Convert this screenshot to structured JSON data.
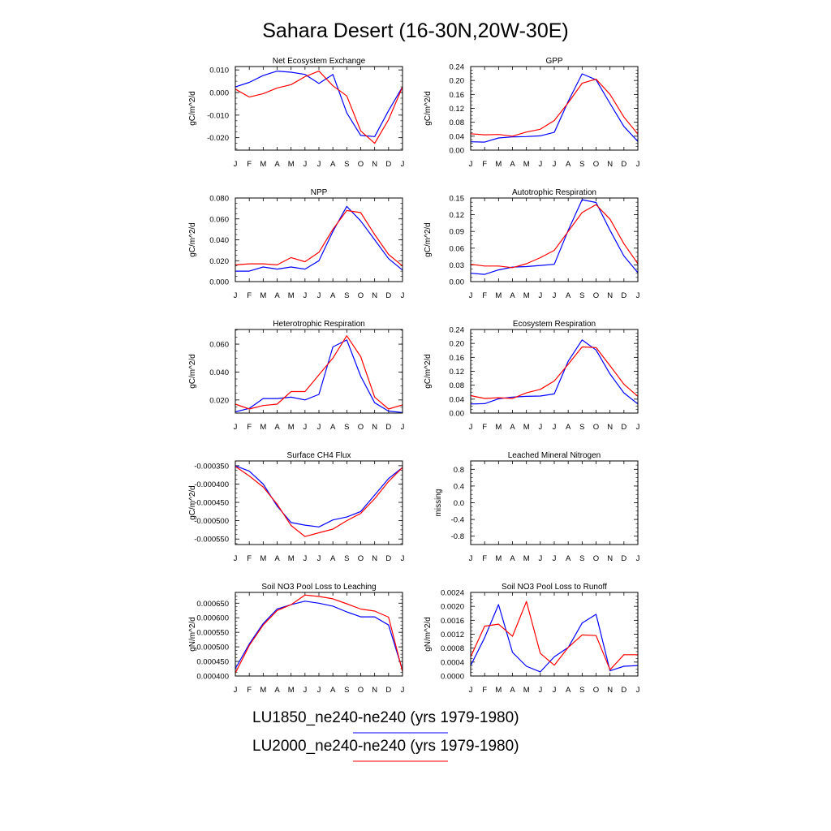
{
  "title": "Sahara Desert (16-30N,20W-30E)",
  "legend": [
    {
      "label": "LU1850_ne240-ne240 (yrs 1979-1980)",
      "color": "#0000ff"
    },
    {
      "label": "LU2000_ne240-ne240 (yrs 1979-1980)",
      "color": "#ff0000"
    }
  ],
  "chart_data": [
    {
      "type": "line",
      "title": "Net Ecosystem Exchange",
      "ylabel": "gC/m^2/d",
      "x": [
        "J",
        "F",
        "M",
        "A",
        "M",
        "J",
        "J",
        "A",
        "S",
        "O",
        "N",
        "D",
        "J"
      ],
      "ylim": [
        -0.0255,
        0.0115
      ],
      "yticks": [
        {
          "v": 0.01,
          "label": "0.010"
        },
        {
          "v": 0.0,
          "label": "0.000"
        },
        {
          "v": -0.01,
          "label": "-0.010"
        },
        {
          "v": -0.02,
          "label": "-0.020"
        }
      ],
      "series": [
        {
          "color": "#0000ff",
          "values": [
            0.0025,
            0.0045,
            0.0075,
            0.0095,
            0.009,
            0.008,
            0.004,
            0.008,
            -0.009,
            -0.019,
            -0.0195,
            -0.008,
            0.0025
          ]
        },
        {
          "color": "#ff0000",
          "values": [
            0.0015,
            -0.002,
            -0.0005,
            0.002,
            0.0035,
            0.007,
            0.0095,
            0.003,
            -0.0015,
            -0.017,
            -0.0225,
            -0.012,
            0.0025
          ]
        }
      ]
    },
    {
      "type": "line",
      "title": "GPP",
      "ylabel": "gC/m^2/d",
      "x": [
        "J",
        "F",
        "M",
        "A",
        "M",
        "J",
        "J",
        "A",
        "S",
        "O",
        "N",
        "D",
        "J"
      ],
      "ylim": [
        0,
        0.24
      ],
      "yticks": [
        {
          "v": 0.24,
          "label": "0.24"
        },
        {
          "v": 0.2,
          "label": "0.20"
        },
        {
          "v": 0.16,
          "label": "0.16"
        },
        {
          "v": 0.12,
          "label": "0.12"
        },
        {
          "v": 0.08,
          "label": "0.08"
        },
        {
          "v": 0.04,
          "label": "0.04"
        },
        {
          "v": 0.0,
          "label": "0.00"
        }
      ],
      "series": [
        {
          "color": "#0000ff",
          "values": [
            0.024,
            0.023,
            0.035,
            0.038,
            0.039,
            0.041,
            0.051,
            0.14,
            0.219,
            0.202,
            0.134,
            0.068,
            0.025
          ]
        },
        {
          "color": "#ff0000",
          "values": [
            0.047,
            0.044,
            0.045,
            0.04,
            0.052,
            0.06,
            0.085,
            0.136,
            0.192,
            0.204,
            0.16,
            0.095,
            0.046
          ]
        }
      ]
    },
    {
      "type": "line",
      "title": "NPP",
      "ylabel": "gC/m^2/d",
      "x": [
        "J",
        "F",
        "M",
        "A",
        "M",
        "J",
        "J",
        "A",
        "S",
        "O",
        "N",
        "D",
        "J"
      ],
      "ylim": [
        0,
        0.08
      ],
      "yticks": [
        {
          "v": 0.08,
          "label": "0.080"
        },
        {
          "v": 0.06,
          "label": "0.060"
        },
        {
          "v": 0.04,
          "label": "0.040"
        },
        {
          "v": 0.02,
          "label": "0.020"
        },
        {
          "v": 0.0,
          "label": "0.000"
        }
      ],
      "series": [
        {
          "color": "#0000ff",
          "values": [
            0.01,
            0.01,
            0.014,
            0.012,
            0.014,
            0.012,
            0.02,
            0.048,
            0.072,
            0.058,
            0.04,
            0.022,
            0.011
          ]
        },
        {
          "color": "#ff0000",
          "values": [
            0.016,
            0.017,
            0.017,
            0.016,
            0.023,
            0.019,
            0.028,
            0.05,
            0.068,
            0.066,
            0.045,
            0.026,
            0.015
          ]
        }
      ]
    },
    {
      "type": "line",
      "title": "Autotrophic Respiration",
      "ylabel": "gC/m^2/d",
      "x": [
        "J",
        "F",
        "M",
        "A",
        "M",
        "J",
        "J",
        "A",
        "S",
        "O",
        "N",
        "D",
        "J"
      ],
      "ylim": [
        0,
        0.15
      ],
      "yticks": [
        {
          "v": 0.15,
          "label": "0.15"
        },
        {
          "v": 0.12,
          "label": "0.12"
        },
        {
          "v": 0.09,
          "label": "0.09"
        },
        {
          "v": 0.06,
          "label": "0.06"
        },
        {
          "v": 0.03,
          "label": "0.03"
        },
        {
          "v": 0.0,
          "label": "0.00"
        }
      ],
      "series": [
        {
          "color": "#0000ff",
          "values": [
            0.015,
            0.013,
            0.021,
            0.026,
            0.027,
            0.029,
            0.031,
            0.092,
            0.147,
            0.142,
            0.092,
            0.046,
            0.016
          ]
        },
        {
          "color": "#ff0000",
          "values": [
            0.031,
            0.028,
            0.028,
            0.025,
            0.032,
            0.043,
            0.056,
            0.09,
            0.124,
            0.138,
            0.112,
            0.068,
            0.032
          ]
        }
      ]
    },
    {
      "type": "line",
      "title": "Heterotrophic Respiration",
      "ylabel": "gC/m^2/d",
      "x": [
        "J",
        "F",
        "M",
        "A",
        "M",
        "J",
        "J",
        "A",
        "S",
        "O",
        "N",
        "D",
        "J"
      ],
      "ylim": [
        0.0106,
        0.0705
      ],
      "yticks": [
        {
          "v": 0.06,
          "label": "0.060"
        },
        {
          "v": 0.04,
          "label": "0.040"
        },
        {
          "v": 0.02,
          "label": "0.020"
        }
      ],
      "series": [
        {
          "color": "#0000ff",
          "values": [
            0.0115,
            0.014,
            0.021,
            0.021,
            0.022,
            0.02,
            0.024,
            0.058,
            0.063,
            0.037,
            0.018,
            0.012,
            0.011
          ]
        },
        {
          "color": "#ff0000",
          "values": [
            0.017,
            0.0135,
            0.016,
            0.017,
            0.026,
            0.026,
            0.038,
            0.05,
            0.066,
            0.051,
            0.022,
            0.0135,
            0.0165
          ]
        }
      ]
    },
    {
      "type": "line",
      "title": "Ecosystem Respiration",
      "ylabel": "gC/m^2/d",
      "x": [
        "J",
        "F",
        "M",
        "A",
        "M",
        "J",
        "J",
        "A",
        "S",
        "O",
        "N",
        "D",
        "J"
      ],
      "ylim": [
        0,
        0.24
      ],
      "yticks": [
        {
          "v": 0.24,
          "label": "0.24"
        },
        {
          "v": 0.2,
          "label": "0.20"
        },
        {
          "v": 0.16,
          "label": "0.16"
        },
        {
          "v": 0.12,
          "label": "0.12"
        },
        {
          "v": 0.08,
          "label": "0.08"
        },
        {
          "v": 0.04,
          "label": "0.04"
        },
        {
          "v": 0.0,
          "label": "0.00"
        }
      ],
      "series": [
        {
          "color": "#0000ff",
          "values": [
            0.026,
            0.027,
            0.041,
            0.046,
            0.048,
            0.049,
            0.055,
            0.149,
            0.21,
            0.181,
            0.112,
            0.058,
            0.026
          ]
        },
        {
          "color": "#ff0000",
          "values": [
            0.05,
            0.042,
            0.044,
            0.042,
            0.058,
            0.068,
            0.092,
            0.14,
            0.19,
            0.188,
            0.136,
            0.083,
            0.048
          ]
        }
      ]
    },
    {
      "type": "line",
      "title": "Surface CH4 Flux",
      "ylabel": "gC/m^2/d",
      "x": [
        "J",
        "F",
        "M",
        "A",
        "M",
        "J",
        "J",
        "A",
        "S",
        "O",
        "N",
        "D",
        "J"
      ],
      "ylim": [
        -0.000565,
        -0.000337
      ],
      "yticks": [
        {
          "v": -0.00035,
          "label": "-0.000350"
        },
        {
          "v": -0.0004,
          "label": "-0.000400"
        },
        {
          "v": -0.00045,
          "label": "-0.000450"
        },
        {
          "v": -0.0005,
          "label": "-0.000500"
        },
        {
          "v": -0.00055,
          "label": "-0.000550"
        }
      ],
      "series": [
        {
          "color": "#0000ff",
          "values": [
            -0.00035,
            -0.000365,
            -0.0004,
            -0.00046,
            -0.000505,
            -0.000512,
            -0.000517,
            -0.000498,
            -0.00049,
            -0.000475,
            -0.00043,
            -0.000385,
            -0.000355
          ]
        },
        {
          "color": "#ff0000",
          "values": [
            -0.000352,
            -0.000378,
            -0.000408,
            -0.000455,
            -0.000513,
            -0.000543,
            -0.000533,
            -0.000523,
            -0.0005,
            -0.00048,
            -0.00044,
            -0.000393,
            -0.000355
          ]
        }
      ]
    },
    {
      "type": "line",
      "title": "Leached Mineral Nitrogen",
      "ylabel": "missing",
      "x": [
        "J",
        "F",
        "M",
        "A",
        "M",
        "J",
        "J",
        "A",
        "S",
        "O",
        "N",
        "D",
        "J"
      ],
      "ylim": [
        -1.0,
        1.0
      ],
      "yticks": [
        {
          "v": 0.8,
          "label": "0.8"
        },
        {
          "v": 0.4,
          "label": "0.4"
        },
        {
          "v": 0.0,
          "label": "0.0"
        },
        {
          "v": -0.4,
          "label": "-0.4"
        },
        {
          "v": -0.8,
          "label": "-0.8"
        }
      ],
      "series": []
    },
    {
      "type": "line",
      "title": "Soil NO3 Pool Loss to Leaching",
      "ylabel": "gN/m^2/d",
      "x": [
        "J",
        "F",
        "M",
        "A",
        "M",
        "J",
        "J",
        "A",
        "S",
        "O",
        "N",
        "D",
        "J"
      ],
      "ylim": [
        0.0004,
        0.000687
      ],
      "yticks": [
        {
          "v": 0.00065,
          "label": "0.000650"
        },
        {
          "v": 0.0006,
          "label": "0.000600"
        },
        {
          "v": 0.00055,
          "label": "0.000550"
        },
        {
          "v": 0.0005,
          "label": "0.000500"
        },
        {
          "v": 0.00045,
          "label": "0.000450"
        },
        {
          "v": 0.0004,
          "label": "0.000400"
        }
      ],
      "series": [
        {
          "color": "#0000ff",
          "values": [
            0.000425,
            0.00051,
            0.00058,
            0.00063,
            0.000645,
            0.000657,
            0.00065,
            0.00064,
            0.00062,
            0.000603,
            0.000603,
            0.000575,
            0.00042
          ]
        },
        {
          "color": "#ff0000",
          "values": [
            0.00041,
            0.000505,
            0.000575,
            0.000625,
            0.000645,
            0.000678,
            0.000673,
            0.000665,
            0.000648,
            0.00063,
            0.000623,
            0.000602,
            0.000415
          ]
        }
      ]
    },
    {
      "type": "line",
      "title": "Soil NO3 Pool Loss to Runoff",
      "ylabel": "gN/m^2/d",
      "x": [
        "J",
        "F",
        "M",
        "A",
        "M",
        "J",
        "J",
        "A",
        "S",
        "O",
        "N",
        "D",
        "J"
      ],
      "ylim": [
        0,
        0.0024
      ],
      "yticks": [
        {
          "v": 0.0024,
          "label": "0.0024"
        },
        {
          "v": 0.002,
          "label": "0.0020"
        },
        {
          "v": 0.0016,
          "label": "0.0016"
        },
        {
          "v": 0.0012,
          "label": "0.0012"
        },
        {
          "v": 0.0008,
          "label": "0.0008"
        },
        {
          "v": 0.0004,
          "label": "0.0004"
        },
        {
          "v": 0.0,
          "label": "0.0000"
        }
      ],
      "series": [
        {
          "color": "#0000ff",
          "values": [
            0.0003,
            0.0011,
            0.00205,
            0.00068,
            0.00028,
            0.00012,
            0.00055,
            0.00082,
            0.00152,
            0.00177,
            0.00015,
            0.00028,
            0.0003
          ]
        },
        {
          "color": "#ff0000",
          "values": [
            0.00055,
            0.00143,
            0.00149,
            0.00114,
            0.00214,
            0.00065,
            0.00031,
            0.00082,
            0.00118,
            0.00116,
            0.00018,
            0.00061,
            0.00061
          ]
        }
      ]
    }
  ]
}
